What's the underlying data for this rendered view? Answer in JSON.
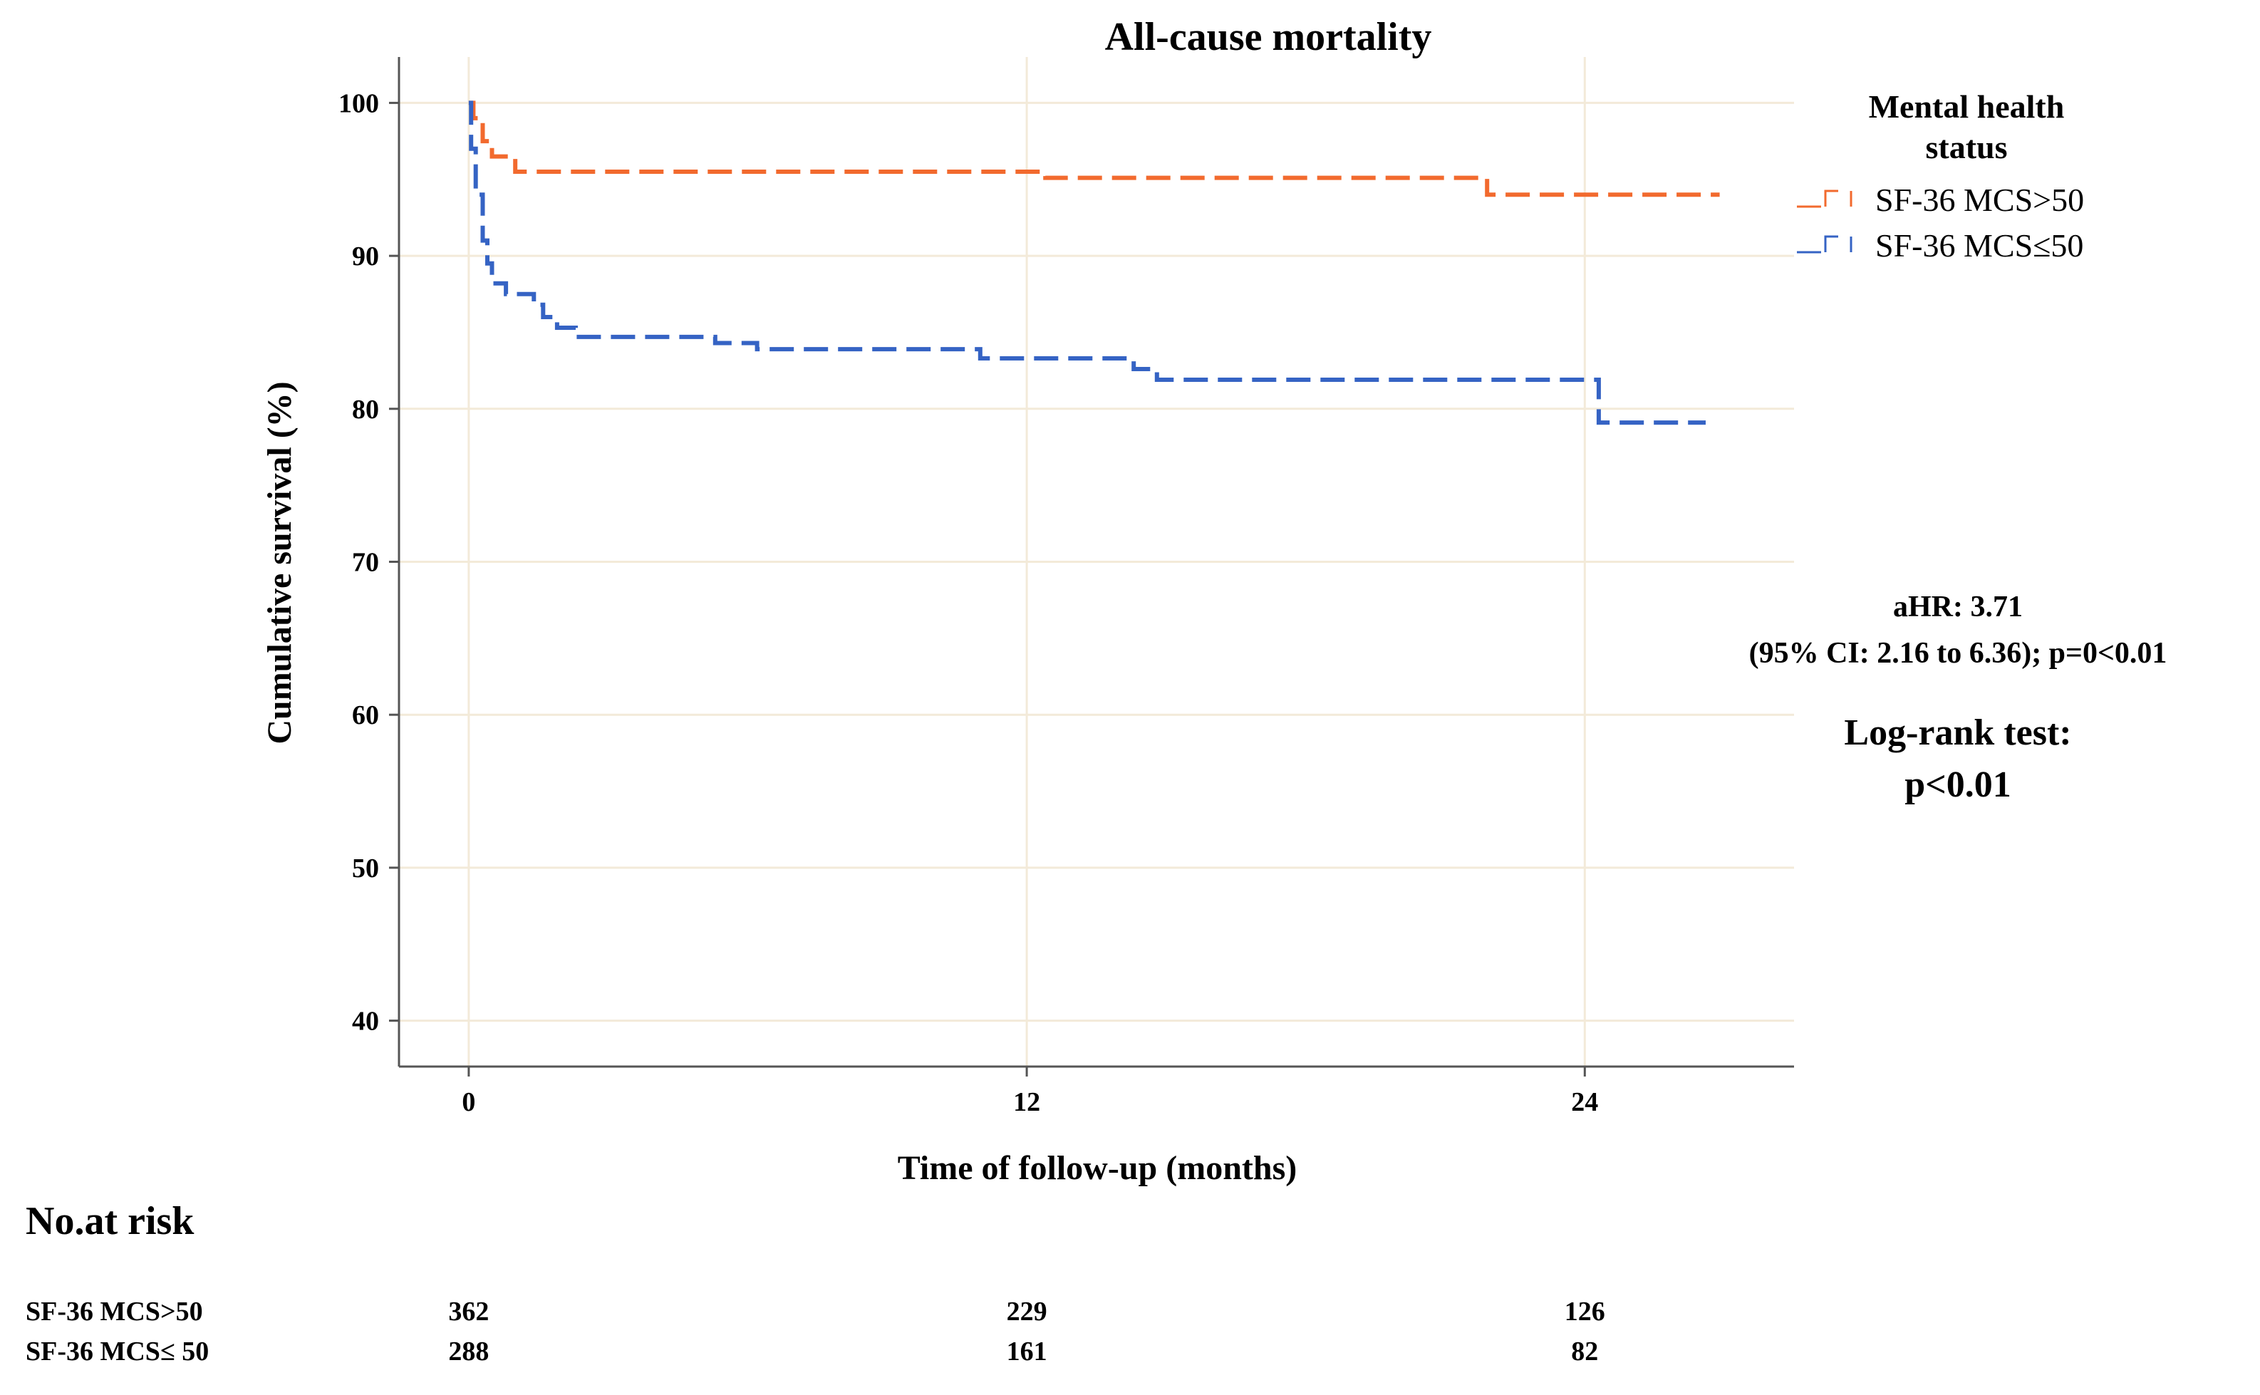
{
  "chart_data": {
    "type": "line",
    "title": "All-cause mortality",
    "xlabel": "Time of follow-up (months)",
    "ylabel": "Cumulative survival (%)",
    "xlim": [
      -1.5,
      28.5
    ],
    "ylim": [
      37,
      103
    ],
    "xticks": [
      0,
      12,
      24
    ],
    "yticks": [
      40,
      50,
      60,
      70,
      80,
      90,
      100
    ],
    "grid": true,
    "legend_position": "top-right",
    "legend_title": "Mental health status",
    "series": [
      {
        "name": "SF-36 MCS>50",
        "color": "#f26a2e",
        "steps": [
          [
            0,
            100
          ],
          [
            0.1,
            99
          ],
          [
            0.3,
            97.5
          ],
          [
            0.5,
            96.5
          ],
          [
            1.0,
            95.5
          ],
          [
            12.4,
            95.1
          ],
          [
            21.9,
            94
          ],
          [
            26.9,
            94
          ]
        ]
      },
      {
        "name": "SF-36 MCS≤50",
        "color": "#3563c4",
        "steps": [
          [
            0,
            100
          ],
          [
            0.05,
            97
          ],
          [
            0.15,
            94
          ],
          [
            0.3,
            91
          ],
          [
            0.4,
            89.5
          ],
          [
            0.5,
            88.2
          ],
          [
            0.8,
            87.5
          ],
          [
            1.4,
            86.8
          ],
          [
            1.6,
            86
          ],
          [
            1.9,
            85.3
          ],
          [
            2.3,
            84.7
          ],
          [
            5.3,
            84.3
          ],
          [
            6.2,
            83.9
          ],
          [
            11.0,
            83.3
          ],
          [
            14.3,
            82.6
          ],
          [
            14.8,
            81.9
          ],
          [
            24.3,
            79.1
          ],
          [
            26.6,
            79.1
          ]
        ]
      }
    ]
  },
  "annotations": {
    "ahr_line1": "aHR: 3.71",
    "ahr_line2": "(95% CI: 2.16 to 6.36); p=0<0.01",
    "logrank_line1": "Log-rank test:",
    "logrank_line2": "p<0.01"
  },
  "risk_table": {
    "title": "No.at risk",
    "rows": [
      {
        "label": "SF-36 MCS>50",
        "values": [
          "362",
          "229",
          "126"
        ]
      },
      {
        "label": "SF-36 MCS≤ 50",
        "values": [
          "288",
          "161",
          "82"
        ]
      }
    ]
  }
}
